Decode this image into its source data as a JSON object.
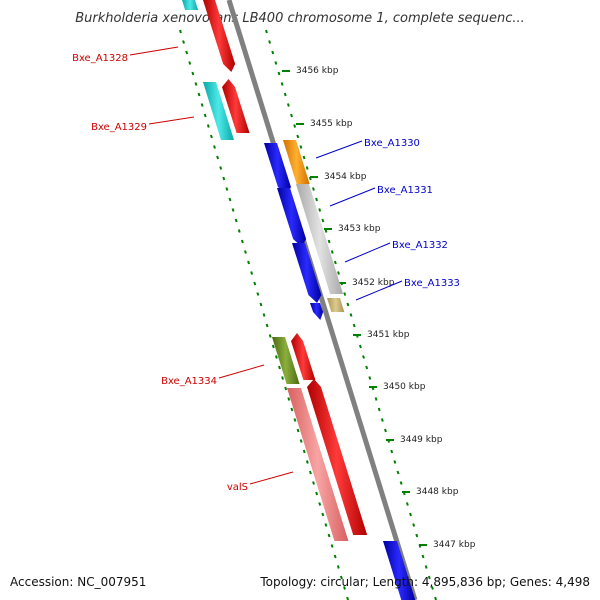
{
  "title": "Burkholderia xenovorans LB400 chromosome 1, complete sequenc...",
  "footer": {
    "accession": "Accession: NC_007951",
    "summary": "Topology: circular; Length: 4,895,836 bp; Genes: 4,498"
  },
  "colors": {
    "backbone": "#808080",
    "tick": "#008000",
    "label_left": "#cc0000",
    "label_right": "#0000cc",
    "tick_text": "#222222"
  },
  "ticks": [
    "3456 kbp",
    "3455 kbp",
    "3454 kbp",
    "3453 kbp",
    "3452 kbp",
    "3451 kbp",
    "3450 kbp",
    "3449 kbp",
    "3448 kbp",
    "3447 kbp"
  ],
  "gene_labels": {
    "left": [
      "Bxe_A1328",
      "Bxe_A1329",
      "Bxe_A1334",
      "valS"
    ],
    "right": [
      "Bxe_A1330",
      "Bxe_A1331",
      "Bxe_A1332",
      "Bxe_A1333"
    ]
  },
  "feature_colors": {
    "cyan": "#1fcfcf",
    "red": "#ff0000",
    "blue": "#0000ee",
    "orange": "#ff9900",
    "silver": "#c8c8c8",
    "khaki": "#c8b46e",
    "olive": "#6b8e23",
    "pink": "#f08080"
  }
}
